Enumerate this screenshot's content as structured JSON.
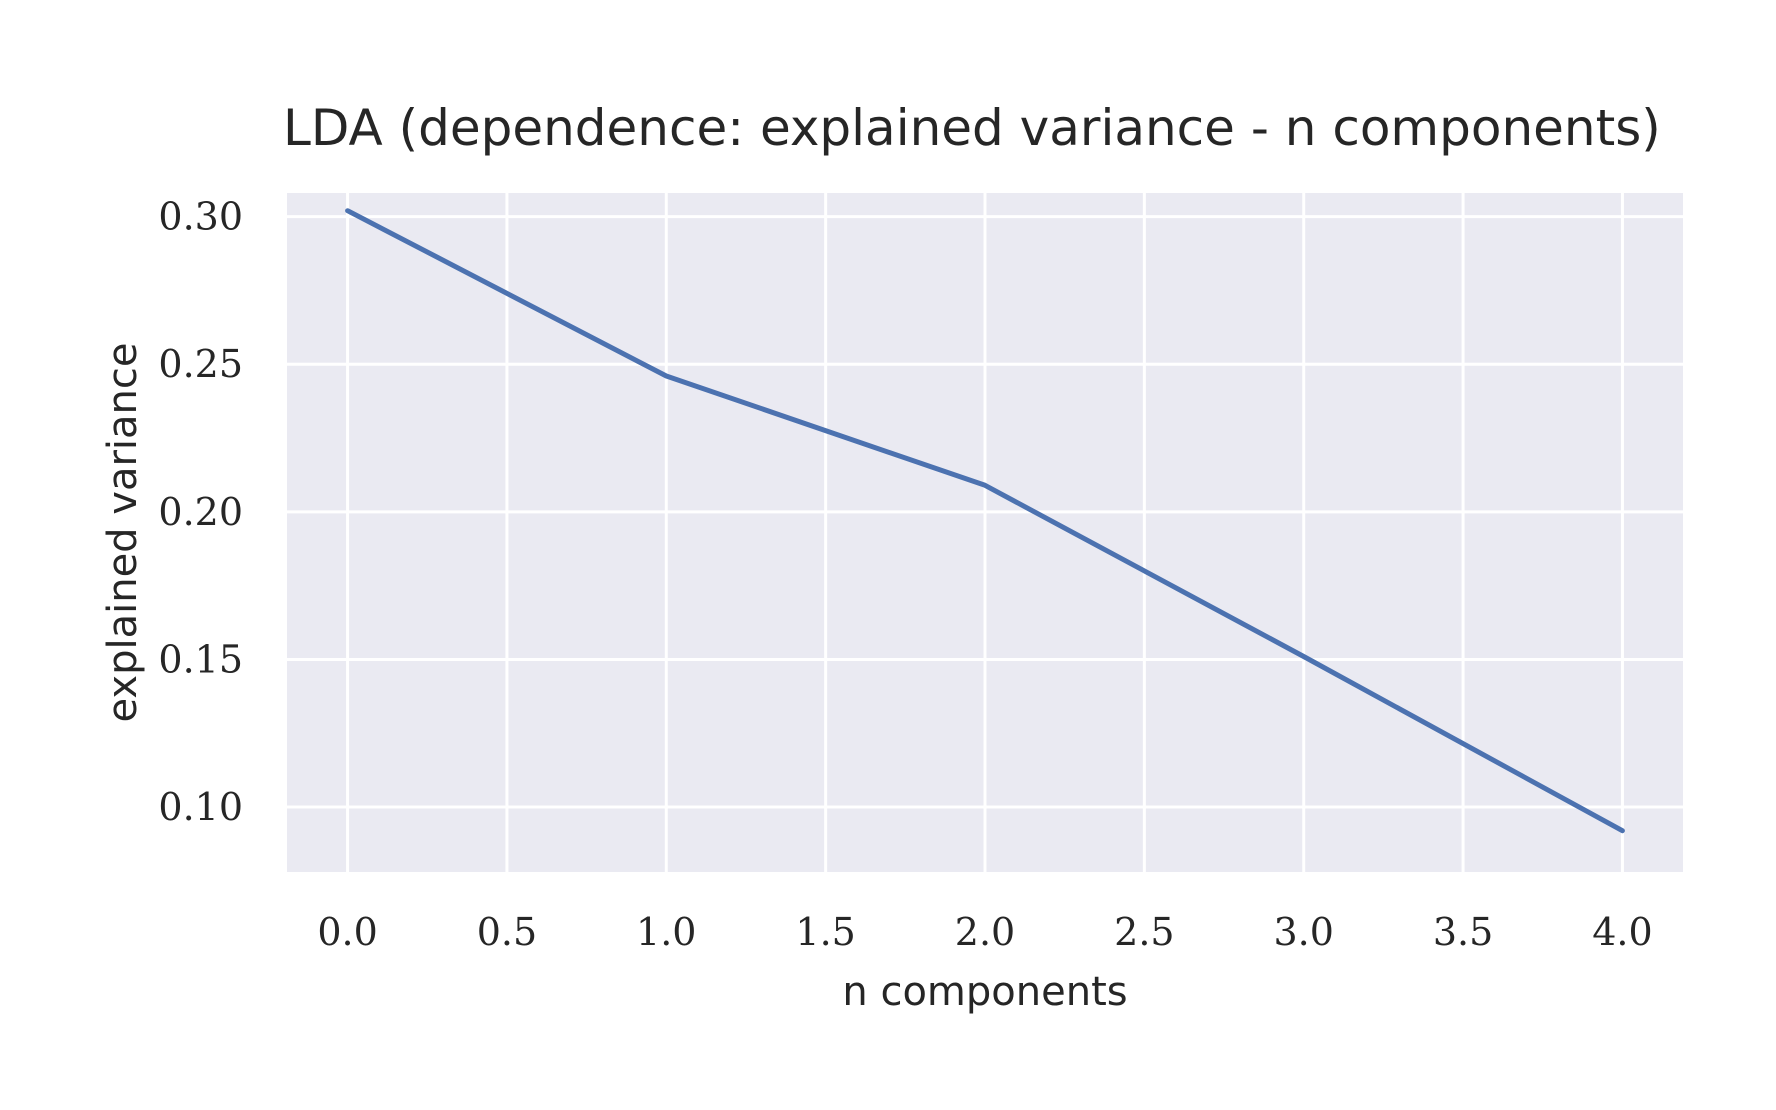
{
  "chart_data": {
    "type": "line",
    "title": "LDA (dependence: explained variance - n components)",
    "xlabel": "n components",
    "ylabel": "explained variance",
    "xlim": [
      -0.19,
      4.19
    ],
    "ylim": [
      0.078,
      0.308
    ],
    "xticks": [
      0.0,
      0.5,
      1.0,
      1.5,
      2.0,
      2.5,
      3.0,
      3.5,
      4.0
    ],
    "yticks": [
      0.1,
      0.15,
      0.2,
      0.25,
      0.3
    ],
    "xtick_labels": [
      "0.0",
      "0.5",
      "1.0",
      "1.5",
      "2.0",
      "2.5",
      "3.0",
      "3.5",
      "4.0"
    ],
    "ytick_labels": [
      "0.10",
      "0.15",
      "0.20",
      "0.25",
      "0.30"
    ],
    "grid": true,
    "series": [
      {
        "x": [
          0,
          1,
          2,
          3,
          4
        ],
        "y": [
          0.302,
          0.246,
          0.209,
          0.151,
          0.092
        ],
        "color": "#4C72B0"
      }
    ]
  },
  "colors": {
    "plot_background": "#EAEAF2",
    "grid": "#FFFFFF",
    "line": "#4C72B0",
    "text": "#262626"
  }
}
